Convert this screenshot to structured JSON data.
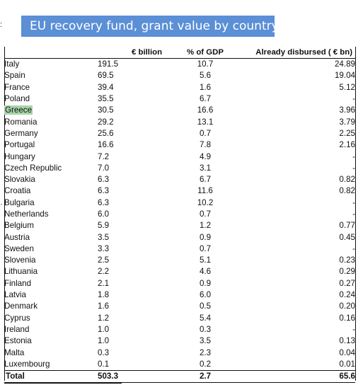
{
  "title": "EU recovery fund, grant value by country",
  "headers": {
    "country": "",
    "eur_billion": "€ billion",
    "pct_gdp": "% of GDP",
    "disbursed": "Already  disbursed  ( € bn)"
  },
  "highlight_color": "#a9d4a9",
  "banner_color": "#5b8fd6",
  "rows": [
    {
      "country": "Italy",
      "eur": "191.5",
      "gdp": "10.7",
      "disb": "24.89"
    },
    {
      "country": "Spain",
      "eur": "69.5",
      "gdp": "5.6",
      "disb": "19.04"
    },
    {
      "country": "France",
      "eur": "39.4",
      "gdp": "1.6",
      "disb": "5.12"
    },
    {
      "country": "Poland",
      "eur": "35.5",
      "gdp": "6.7",
      "disb": "-"
    },
    {
      "country": "Greece",
      "eur": "30.5",
      "gdp": "16.6",
      "disb": "3.96",
      "highlight": true
    },
    {
      "country": "Romania",
      "eur": "29.2",
      "gdp": "13.1",
      "disb": "3.79"
    },
    {
      "country": "Germany",
      "eur": "25.6",
      "gdp": "0.7",
      "disb": "2.25"
    },
    {
      "country": "Portugal",
      "eur": "16.6",
      "gdp": "7.8",
      "disb": "2.16"
    },
    {
      "country": "Hungary",
      "eur": "7.2",
      "gdp": "4.9",
      "disb": "-"
    },
    {
      "country": "Czech Republic",
      "eur": "7.0",
      "gdp": "3.1",
      "disb": "-"
    },
    {
      "country": "Slovakia",
      "eur": "6.3",
      "gdp": "6.7",
      "disb": "0.82"
    },
    {
      "country": "Croatia",
      "eur": "6.3",
      "gdp": "11.6",
      "disb": "0.82"
    },
    {
      "country": "Bulgaria",
      "eur": "6.3",
      "gdp": "10.2",
      "disb": "-"
    },
    {
      "country": "Netherlands",
      "eur": "6.0",
      "gdp": "0.7",
      "disb": "-"
    },
    {
      "country": "Belgium",
      "eur": "5.9",
      "gdp": "1.2",
      "disb": "0.77"
    },
    {
      "country": "Austria",
      "eur": "3.5",
      "gdp": "0.9",
      "disb": "0.45"
    },
    {
      "country": "Sweden",
      "eur": "3.3",
      "gdp": "0.7",
      "disb": "-"
    },
    {
      "country": "Slovenia",
      "eur": "2.5",
      "gdp": "5.1",
      "disb": "0.23"
    },
    {
      "country": "Lithuania",
      "eur": "2.2",
      "gdp": "4.6",
      "disb": "0.29"
    },
    {
      "country": "Finland",
      "eur": "2.1",
      "gdp": "0.9",
      "disb": "0.27"
    },
    {
      "country": "Latvia",
      "eur": "1.8",
      "gdp": "6.0",
      "disb": "0.24"
    },
    {
      "country": "Denmark",
      "eur": "1.6",
      "gdp": "0.5",
      "disb": "0.20"
    },
    {
      "country": "Cyprus",
      "eur": "1.2",
      "gdp": "5.4",
      "disb": "0.16"
    },
    {
      "country": "Ireland",
      "eur": "1.0",
      "gdp": "0.3",
      "disb": "-"
    },
    {
      "country": "Estonia",
      "eur": "1.0",
      "gdp": "3.5",
      "disb": "0.13"
    },
    {
      "country": "Malta",
      "eur": "0.3",
      "gdp": "2.3",
      "disb": "0.04"
    },
    {
      "country": "Luxembourg",
      "eur": "0.1",
      "gdp": "0.2",
      "disb": "0.01"
    }
  ],
  "total": {
    "country": "Total",
    "eur": "503.3",
    "gdp": "2.7",
    "disb": "65.6"
  }
}
